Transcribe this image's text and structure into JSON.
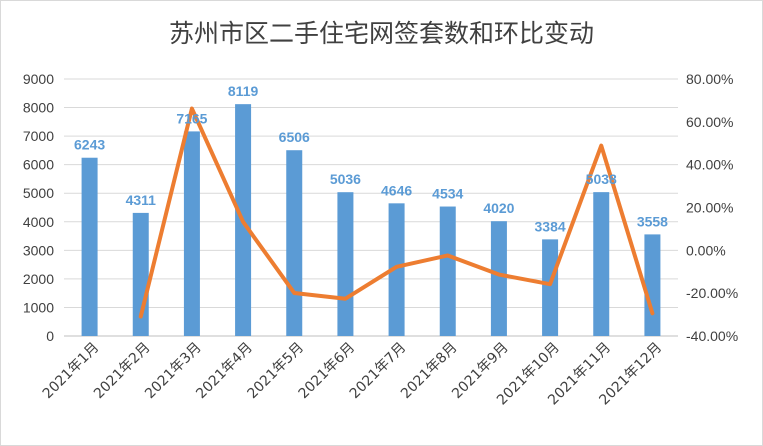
{
  "chart_data": {
    "type": "bar",
    "title": "苏州市区二手住宅网签套数和环比变动",
    "categories": [
      "2021年1月",
      "2021年2月",
      "2021年3月",
      "2021年4月",
      "2021年5月",
      "2021年6月",
      "2021年7月",
      "2021年8月",
      "2021年9月",
      "2021年10月",
      "2021年11月",
      "2021年12月"
    ],
    "series": [
      {
        "type": "bar",
        "axis": "left",
        "color": "#5b9bd5",
        "values": [
          6243,
          4311,
          7165,
          8119,
          6506,
          5036,
          4646,
          4534,
          4020,
          3384,
          5038,
          3558
        ]
      },
      {
        "type": "line",
        "axis": "right",
        "color": "#ed7d31",
        "values": [
          null,
          -30.9,
          66.2,
          13.3,
          -19.9,
          -22.6,
          -7.7,
          -2.4,
          -11.3,
          -15.8,
          48.9,
          -29.4
        ]
      }
    ],
    "ylim_left": [
      0,
      9000
    ],
    "yticks_left": [
      "0",
      "1000",
      "2000",
      "3000",
      "4000",
      "5000",
      "6000",
      "7000",
      "8000",
      "9000"
    ],
    "ylim_right": [
      -40,
      80
    ],
    "yticks_right": [
      "-40.00%",
      "-20.00%",
      "0.00%",
      "20.00%",
      "40.00%",
      "60.00%",
      "80.00%"
    ],
    "data_labels_color": "#5b9bd5",
    "grid": true
  }
}
